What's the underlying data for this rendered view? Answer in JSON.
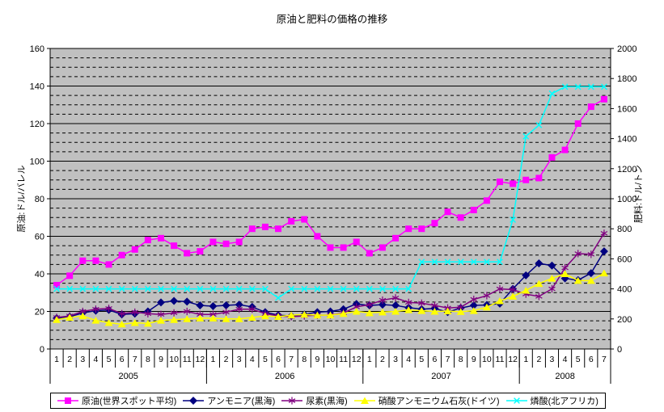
{
  "title": "原油と肥料の価格の推移",
  "left_axis": {
    "title": "原油:ドル/バレル",
    "min": 0,
    "max": 160,
    "major_step": 20,
    "minor_step": 5,
    "ticks": [
      "0",
      "20",
      "40",
      "60",
      "80",
      "100",
      "120",
      "140",
      "160"
    ]
  },
  "right_axis": {
    "title": "肥料:ドル/トン",
    "min": 0,
    "max": 2000,
    "major_step": 200,
    "ticks": [
      "0",
      "200",
      "400",
      "600",
      "800",
      "1000",
      "1200",
      "1400",
      "1600",
      "1800",
      "2000"
    ]
  },
  "plot": {
    "background_color": "#C0C0C0",
    "gridline_color": "#000000",
    "border_color": "#000000",
    "minor_gridlines_dashed": true
  },
  "chart_data": {
    "type": "line",
    "title": "原油と肥料の価格の推移",
    "x_months": [
      "1",
      "2",
      "3",
      "4",
      "5",
      "6",
      "7",
      "8",
      "9",
      "10",
      "11",
      "12",
      "1",
      "2",
      "3",
      "4",
      "5",
      "6",
      "7",
      "8",
      "9",
      "10",
      "11",
      "12",
      "1",
      "2",
      "3",
      "4",
      "5",
      "6",
      "7",
      "8",
      "9",
      "10",
      "11",
      "12",
      "1",
      "2",
      "3",
      "4",
      "5",
      "6",
      "7"
    ],
    "x_years": [
      {
        "label": "2005",
        "months": 12
      },
      {
        "label": "2006",
        "months": 12
      },
      {
        "label": "2007",
        "months": 12
      },
      {
        "label": "2008",
        "months": 7
      }
    ],
    "legend_position": "bottom",
    "grid": "horizontal-only",
    "series": [
      {
        "id": "oil",
        "name": "原油(世界スポット平均)",
        "axis": "left",
        "color": "#FF00FF",
        "marker": "square",
        "values": [
          34,
          39,
          47,
          47,
          45,
          50,
          53,
          58,
          59,
          55,
          51,
          52,
          57,
          56,
          57,
          64,
          65,
          64,
          68,
          69,
          60,
          54,
          54,
          57,
          51,
          54,
          59,
          64,
          64,
          67,
          73,
          70,
          74,
          79,
          89,
          88,
          90,
          91,
          102,
          106,
          120,
          129,
          133
        ]
      },
      {
        "id": "ammonia",
        "name": "アンモニア(黒海)",
        "axis": "right",
        "color": "#000080",
        "marker": "diamond",
        "values": [
          205,
          215,
          240,
          255,
          260,
          230,
          235,
          250,
          310,
          320,
          315,
          290,
          285,
          290,
          295,
          280,
          245,
          225,
          220,
          230,
          245,
          250,
          265,
          300,
          290,
          295,
          290,
          275,
          265,
          270,
          245,
          273,
          290,
          293,
          302,
          400,
          490,
          570,
          555,
          470,
          458,
          505,
          650
        ]
      },
      {
        "id": "urea",
        "name": "尿素(黒海)",
        "axis": "right",
        "color": "#800080",
        "marker": "asterisk",
        "values": [
          210,
          220,
          250,
          265,
          270,
          235,
          245,
          235,
          230,
          240,
          250,
          230,
          230,
          245,
          265,
          265,
          235,
          220,
          215,
          220,
          225,
          225,
          240,
          280,
          295,
          325,
          340,
          310,
          305,
          290,
          273,
          278,
          330,
          355,
          400,
          395,
          365,
          350,
          400,
          540,
          635,
          630,
          770
        ]
      },
      {
        "id": "can",
        "name": "硝酸アンモニウム石灰(ドイツ)",
        "axis": "right",
        "color": "#FFFF00",
        "marker": "triangle",
        "values": [
          195,
          210,
          220,
          190,
          175,
          165,
          175,
          170,
          190,
          195,
          200,
          205,
          205,
          200,
          200,
          210,
          220,
          215,
          225,
          230,
          225,
          225,
          235,
          250,
          240,
          245,
          250,
          260,
          255,
          250,
          252,
          248,
          255,
          278,
          320,
          350,
          390,
          435,
          470,
          500,
          455,
          455,
          505
        ]
      },
      {
        "id": "phosphoric_acid",
        "name": "燐酸(北アフリカ)",
        "axis": "right",
        "color": "#00FFFF",
        "marker": "x",
        "values": [
          400,
          400,
          400,
          400,
          400,
          400,
          400,
          400,
          400,
          400,
          400,
          400,
          400,
          400,
          400,
          400,
          400,
          340,
          400,
          400,
          400,
          400,
          400,
          400,
          400,
          400,
          400,
          400,
          580,
          580,
          580,
          580,
          580,
          580,
          580,
          860,
          1415,
          1490,
          1700,
          1745,
          1745,
          1745,
          1745
        ]
      }
    ]
  }
}
